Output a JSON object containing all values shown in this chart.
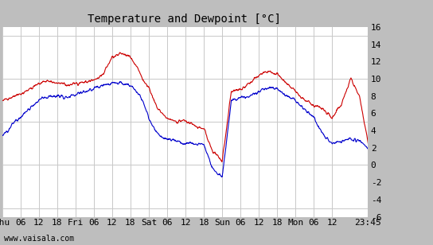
{
  "title": "Temperature and Dewpoint [°C]",
  "ylabel_right_ticks": [
    -6,
    -4,
    -2,
    0,
    2,
    4,
    6,
    8,
    10,
    12,
    14,
    16
  ],
  "ylim": [
    -6,
    16
  ],
  "x_tick_labels": [
    "Thu",
    "06",
    "12",
    "18",
    "Fri",
    "06",
    "12",
    "18",
    "Sat",
    "06",
    "12",
    "18",
    "Sun",
    "06",
    "12",
    "18",
    "Mon",
    "06",
    "12",
    "23:45"
  ],
  "x_ticks_hours": [
    0,
    6,
    12,
    18,
    24,
    30,
    36,
    42,
    48,
    54,
    60,
    66,
    72,
    78,
    84,
    90,
    96,
    102,
    108,
    119.75
  ],
  "x_max": 119.75,
  "watermark": "www.vaisala.com",
  "bg_color": "#bebebe",
  "plot_bg_color": "#ffffff",
  "grid_color": "#c8c8c8",
  "temp_color": "#cc0000",
  "dew_color": "#0000cc",
  "title_fontsize": 10,
  "tick_fontsize": 8,
  "watermark_fontsize": 7,
  "temp_control_x": [
    0,
    2,
    4,
    6,
    9,
    12,
    15,
    18,
    21,
    24,
    27,
    30,
    33,
    36,
    39,
    42,
    44,
    46,
    48,
    51,
    54,
    57,
    60,
    63,
    66,
    69,
    72,
    75,
    78,
    81,
    84,
    87,
    90,
    93,
    96,
    99,
    102,
    105,
    108,
    111,
    114,
    117,
    119.75
  ],
  "temp_control_y": [
    7.5,
    7.8,
    8.0,
    8.2,
    8.8,
    9.5,
    9.8,
    9.5,
    9.3,
    9.5,
    9.6,
    9.8,
    10.5,
    12.5,
    13.0,
    12.5,
    11.5,
    10.0,
    9.0,
    6.5,
    5.5,
    5.0,
    5.2,
    4.5,
    4.2,
    1.5,
    0.5,
    8.5,
    8.8,
    9.5,
    10.5,
    10.8,
    10.5,
    9.5,
    8.5,
    7.5,
    7.0,
    6.5,
    5.5,
    7.0,
    10.0,
    8.0,
    2.5
  ],
  "dew_control_x": [
    0,
    2,
    4,
    6,
    9,
    12,
    15,
    18,
    21,
    24,
    27,
    30,
    33,
    36,
    39,
    42,
    44,
    46,
    48,
    51,
    54,
    57,
    60,
    63,
    66,
    69,
    72,
    75,
    78,
    81,
    84,
    87,
    90,
    93,
    96,
    99,
    102,
    105,
    108,
    111,
    114,
    117,
    119.75
  ],
  "dew_control_y": [
    3.5,
    4.0,
    5.0,
    5.5,
    6.5,
    7.5,
    8.0,
    8.0,
    7.8,
    8.2,
    8.5,
    8.8,
    9.2,
    9.5,
    9.5,
    9.3,
    8.5,
    7.5,
    5.5,
    3.5,
    3.0,
    2.8,
    2.5,
    2.5,
    2.3,
    -0.5,
    -1.5,
    7.5,
    7.8,
    8.0,
    8.5,
    9.0,
    8.8,
    8.0,
    7.5,
    6.5,
    5.5,
    3.5,
    2.5,
    2.8,
    3.0,
    2.8,
    2.0
  ]
}
